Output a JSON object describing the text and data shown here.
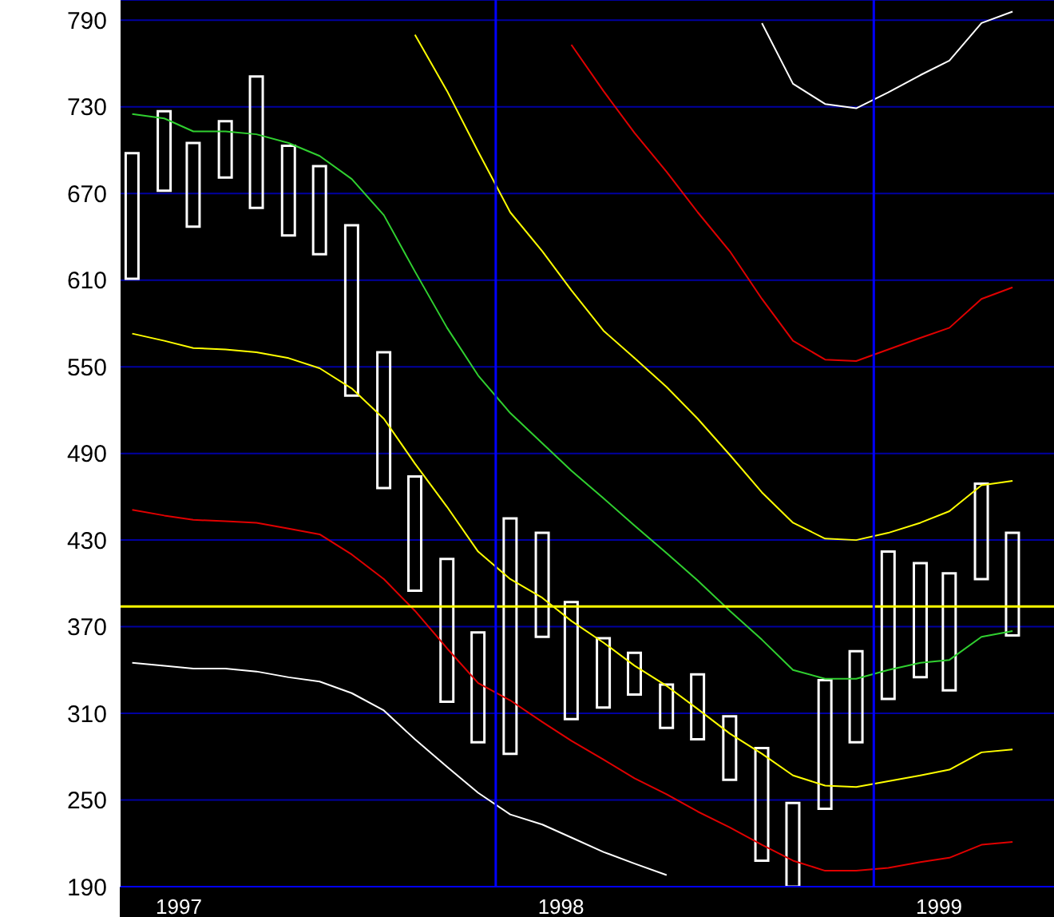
{
  "chart_data": {
    "type": "bar",
    "x": [
      "1997-01-15",
      "1997-02-15",
      "1997-03-15",
      "1997-04-15",
      "1997-05-15",
      "1997-06-15",
      "1997-07-15",
      "1997-08-15",
      "1997-09-15",
      "1997-10-15",
      "1997-11-15",
      "1997-12-15",
      "1998-01-15",
      "1998-02-15",
      "1998-03-15",
      "1998-04-15",
      "1998-05-15",
      "1998-06-15",
      "1998-07-15",
      "1998-08-15",
      "1998-09-15",
      "1998-10-15",
      "1998-11-15",
      "1998-12-15",
      "1999-01-15",
      "1999-02-15",
      "1999-03-15",
      "1999-04-15",
      "1999-05-15"
    ],
    "series": [
      {
        "color": "#ffffff",
        "base": [
          611,
          672,
          647,
          681,
          660,
          641,
          628,
          530,
          466,
          395,
          318,
          290,
          282,
          363,
          306,
          314,
          323,
          300,
          292,
          264,
          208,
          190,
          244,
          290,
          320,
          335,
          326,
          403,
          364
        ],
        "values": [
          87,
          55,
          58,
          39,
          91,
          62,
          61,
          118,
          94,
          79,
          99,
          76,
          163,
          72,
          81,
          48,
          29,
          30,
          45,
          44,
          78,
          58,
          89,
          63,
          102,
          79,
          81,
          66,
          71
        ]
      },
      {
        "type": "line",
        "color": "#ffffff",
        "values": [
          null,
          null,
          null,
          null,
          null,
          null,
          null,
          null,
          null,
          null,
          null,
          null,
          null,
          null,
          null,
          null,
          null,
          null,
          null,
          null,
          788,
          746,
          732,
          729,
          740,
          752,
          762,
          788,
          796
        ]
      },
      {
        "type": "line",
        "color": "#e00000",
        "values": [
          null,
          null,
          null,
          null,
          null,
          null,
          null,
          null,
          null,
          null,
          null,
          null,
          null,
          null,
          773,
          741,
          712,
          685,
          657,
          630,
          597,
          568,
          555,
          554,
          562,
          570,
          577,
          597,
          605
        ]
      },
      {
        "type": "line",
        "color": "#ffff00",
        "values": [
          null,
          null,
          null,
          null,
          null,
          null,
          null,
          null,
          null,
          780,
          741,
          699,
          657,
          630,
          603,
          575,
          556,
          536,
          514,
          489,
          463,
          442,
          431,
          430,
          435,
          442,
          450,
          468,
          471
        ]
      },
      {
        "type": "line",
        "color": "#30d030",
        "values": [
          725,
          722,
          713,
          713,
          711,
          705,
          696,
          680,
          655,
          616,
          577,
          544,
          518,
          497,
          478,
          459,
          440,
          421,
          402,
          381,
          361,
          340,
          334,
          334,
          340,
          345,
          347,
          363,
          367
        ]
      },
      {
        "type": "line",
        "color": "#ffff00",
        "values": [
          573,
          568,
          563,
          562,
          560,
          556,
          549,
          535,
          514,
          483,
          453,
          422,
          403,
          390,
          374,
          359,
          343,
          329,
          313,
          296,
          282,
          267,
          260,
          259,
          263,
          267,
          271,
          283,
          285
        ]
      },
      {
        "type": "line",
        "color": "#e00000",
        "values": [
          451,
          447,
          444,
          443,
          442,
          438,
          434,
          420,
          403,
          381,
          355,
          331,
          319,
          304,
          291,
          278,
          265,
          254,
          242,
          231,
          219,
          208,
          201,
          201,
          203,
          207,
          210,
          219,
          221
        ]
      },
      {
        "type": "line",
        "color": "#ffffff",
        "values": [
          345,
          343,
          341,
          341,
          339,
          335,
          332,
          324,
          312,
          292,
          273,
          255,
          240,
          233,
          224,
          214,
          206,
          198,
          null,
          null,
          null,
          null,
          null,
          null,
          null,
          null,
          null,
          null,
          null
        ]
      }
    ],
    "xlim": [
      "1997-01-03",
      "1999-06-24"
    ],
    "xticks": [
      {
        "value": "1997-03-01",
        "label": "1997"
      },
      {
        "value": "1998-03-05",
        "label": "1998"
      },
      {
        "value": "1999-03-05",
        "label": "1999"
      }
    ],
    "ylim": [
      190,
      804
    ],
    "yticks": [
      190,
      250,
      310,
      370,
      430,
      490,
      550,
      610,
      670,
      730,
      790
    ],
    "grid": "y",
    "ref_lines": [
      {
        "axis": "y",
        "value": 384,
        "color": "#ffff00"
      },
      {
        "axis": "x",
        "value": "1998-01-01",
        "color": "#0000ff"
      },
      {
        "axis": "x",
        "value": "1999-01-01",
        "color": "#0000ff"
      }
    ]
  }
}
